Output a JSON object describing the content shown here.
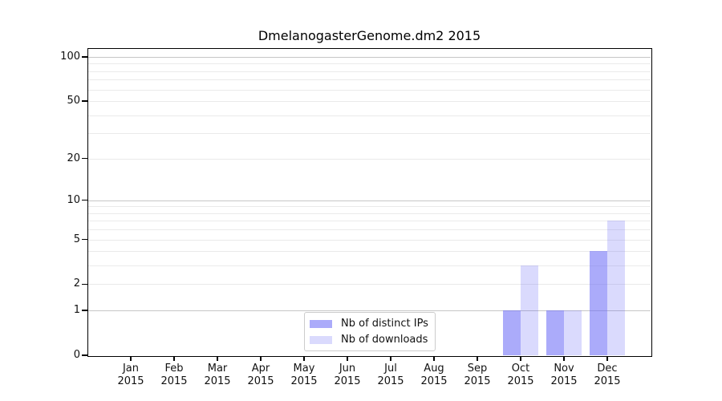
{
  "chart_data": {
    "type": "bar",
    "title": "DmelanogasterGenome.dm2 2015",
    "categories": [
      "Jan 2015",
      "Feb 2015",
      "Mar 2015",
      "Apr 2015",
      "May 2015",
      "Jun 2015",
      "Jul 2015",
      "Aug 2015",
      "Sep 2015",
      "Oct 2015",
      "Nov 2015",
      "Dec 2015"
    ],
    "x": {
      "months": [
        "Jan",
        "Feb",
        "Mar",
        "Apr",
        "May",
        "Jun",
        "Jul",
        "Aug",
        "Sep",
        "Oct",
        "Nov",
        "Dec"
      ],
      "year": "2015"
    },
    "series": [
      {
        "name": "Nb of distinct IPs",
        "color": "rgba(102,102,245,0.55)",
        "values": [
          0,
          0,
          0,
          0,
          0,
          0,
          0,
          0,
          0,
          1,
          1,
          4
        ]
      },
      {
        "name": "Nb of downloads",
        "color": "rgba(102,102,245,0.24)",
        "values": [
          0,
          0,
          0,
          0,
          0,
          0,
          0,
          0,
          0,
          3,
          1,
          7
        ]
      }
    ],
    "yaxis": {
      "scale": "log1p",
      "ylim": [
        0,
        101
      ],
      "ticks": [
        0,
        1,
        2,
        5,
        10,
        20,
        50,
        100
      ]
    },
    "grid": {
      "major_values": [
        1,
        10,
        100
      ],
      "minor_values": [
        2,
        3,
        4,
        5,
        6,
        7,
        8,
        9,
        20,
        30,
        40,
        50,
        60,
        70,
        80,
        90
      ],
      "major_color": "#c6c6c6",
      "minor_color": "#eaeaea"
    },
    "legend": {
      "position": "lower center"
    }
  }
}
